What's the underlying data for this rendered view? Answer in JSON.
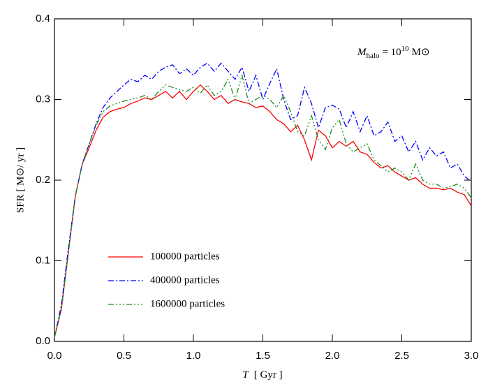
{
  "chart_data": {
    "type": "line",
    "xlabel": {
      "symbol": "T",
      "unit": "[ Gyr ]"
    },
    "ylabel": "SFR  [ M⊙/ yr ]",
    "annotation": {
      "symbol": "M",
      "subscript": "halo",
      "equals": "= 10",
      "exponent": "10",
      "unit": "M⊙"
    },
    "x": [
      0,
      0.05,
      0.1,
      0.15,
      0.2,
      0.25,
      0.3,
      0.35,
      0.4,
      0.45,
      0.5,
      0.55,
      0.6,
      0.65,
      0.7,
      0.75,
      0.8,
      0.85,
      0.9,
      0.95,
      1.0,
      1.05,
      1.1,
      1.15,
      1.2,
      1.25,
      1.3,
      1.35,
      1.4,
      1.45,
      1.5,
      1.55,
      1.6,
      1.65,
      1.7,
      1.75,
      1.8,
      1.85,
      1.9,
      1.95,
      2.0,
      2.05,
      2.1,
      2.15,
      2.2,
      2.25,
      2.3,
      2.35,
      2.4,
      2.45,
      2.5,
      2.55,
      2.6,
      2.65,
      2.7,
      2.75,
      2.8,
      2.85,
      2.9,
      2.95,
      3.0
    ],
    "series": [
      {
        "name": "100000 particles",
        "color": "#ff0000",
        "linestyle": "solid",
        "values": [
          0.005,
          0.04,
          0.11,
          0.18,
          0.22,
          0.24,
          0.262,
          0.278,
          0.285,
          0.288,
          0.29,
          0.295,
          0.298,
          0.302,
          0.3,
          0.305,
          0.31,
          0.302,
          0.31,
          0.3,
          0.31,
          0.318,
          0.31,
          0.3,
          0.305,
          0.295,
          0.3,
          0.297,
          0.295,
          0.29,
          0.292,
          0.285,
          0.275,
          0.27,
          0.26,
          0.268,
          0.25,
          0.225,
          0.262,
          0.255,
          0.24,
          0.248,
          0.242,
          0.248,
          0.235,
          0.232,
          0.222,
          0.215,
          0.218,
          0.21,
          0.205,
          0.2,
          0.203,
          0.195,
          0.19,
          0.19,
          0.188,
          0.19,
          0.185,
          0.182,
          0.168
        ]
      },
      {
        "name": "400000 particles",
        "color": "#0000ff",
        "linestyle": "dashdot",
        "values": [
          0.005,
          0.045,
          0.115,
          0.18,
          0.22,
          0.245,
          0.27,
          0.29,
          0.302,
          0.31,
          0.318,
          0.325,
          0.322,
          0.33,
          0.325,
          0.335,
          0.34,
          0.343,
          0.332,
          0.338,
          0.33,
          0.34,
          0.345,
          0.335,
          0.345,
          0.335,
          0.325,
          0.34,
          0.31,
          0.33,
          0.3,
          0.32,
          0.338,
          0.3,
          0.275,
          0.28,
          0.315,
          0.295,
          0.265,
          0.29,
          0.293,
          0.288,
          0.265,
          0.285,
          0.26,
          0.28,
          0.255,
          0.26,
          0.272,
          0.248,
          0.255,
          0.235,
          0.248,
          0.225,
          0.24,
          0.23,
          0.235,
          0.215,
          0.22,
          0.205,
          0.198
        ]
      },
      {
        "name": "1600000 particles",
        "color": "#1a8c1a",
        "linestyle": "dashdotdotdot",
        "values": [
          0.005,
          0.04,
          0.11,
          0.18,
          0.22,
          0.245,
          0.268,
          0.285,
          0.292,
          0.295,
          0.298,
          0.3,
          0.302,
          0.305,
          0.3,
          0.31,
          0.318,
          0.315,
          0.312,
          0.31,
          0.315,
          0.308,
          0.318,
          0.305,
          0.31,
          0.325,
          0.3,
          0.33,
          0.295,
          0.3,
          0.305,
          0.3,
          0.29,
          0.305,
          0.285,
          0.26,
          0.255,
          0.28,
          0.25,
          0.238,
          0.265,
          0.275,
          0.245,
          0.235,
          0.24,
          0.245,
          0.225,
          0.218,
          0.21,
          0.215,
          0.21,
          0.2,
          0.22,
          0.2,
          0.195,
          0.195,
          0.19,
          0.192,
          0.195,
          0.19,
          0.178
        ]
      }
    ],
    "xlim": [
      0,
      3
    ],
    "ylim": [
      0,
      0.4
    ],
    "xticks": [
      {
        "value": 0,
        "label": "0.0"
      },
      0.5,
      {
        "value": 1,
        "label": "1.0"
      },
      1.5,
      {
        "value": 2,
        "label": "2.0"
      },
      2.5,
      {
        "value": 3,
        "label": "3.0"
      }
    ],
    "yticks": [
      {
        "value": 0,
        "label": "0.0"
      },
      0.1,
      0.2,
      0.3,
      0.4
    ],
    "legend": "lower left"
  }
}
